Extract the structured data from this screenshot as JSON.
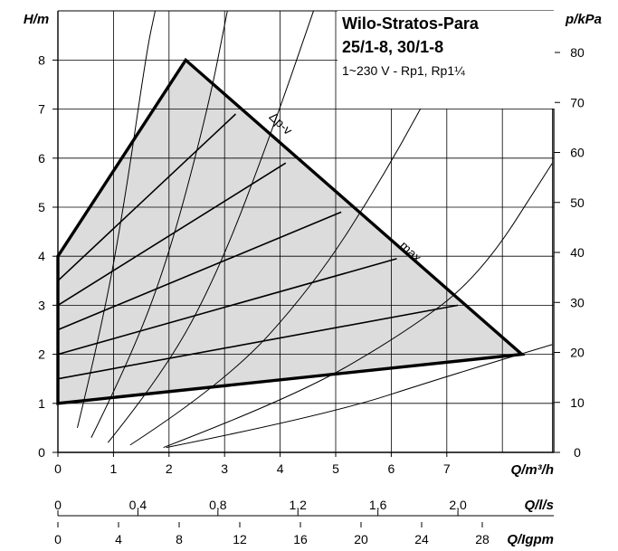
{
  "title": {
    "line1": "Wilo-Stratos-Para",
    "line2": "25/1-8, 30/1-8",
    "line3": "1~230 V - Rp1, Rp1¼"
  },
  "chart_data": {
    "type": "line",
    "ylabel": "H/m",
    "ylabel_right": "p/kPa",
    "xlabel": "Q/m³/h",
    "xlabel2": "Q/l/s",
    "xlabel3": "Q/Igpm",
    "xlim": [
      0,
      8.9
    ],
    "ylim": [
      0,
      8.6
    ],
    "y_ticks": [
      "0",
      "1",
      "2",
      "3",
      "4",
      "5",
      "6",
      "7",
      "8"
    ],
    "p_ticks": [
      "0",
      "10",
      "20",
      "30",
      "40",
      "50",
      "60",
      "70",
      "80"
    ],
    "x_ticks": [
      "0",
      "1",
      "2",
      "3",
      "4",
      "5",
      "6",
      "7"
    ],
    "ls_ticks": [
      "0",
      "0,4",
      "0,8",
      "1,2",
      "1,6",
      "2,0"
    ],
    "ls_values": [
      0,
      0.4,
      0.8,
      1.2,
      1.6,
      2.0
    ],
    "igpm_ticks": [
      "0",
      "4",
      "8",
      "12",
      "16",
      "20",
      "24",
      "28"
    ],
    "igpm_values": [
      0,
      4,
      8,
      12,
      16,
      20,
      24,
      28
    ],
    "grid": true,
    "annotations": {
      "dpv": "Δp-v",
      "max": "max."
    },
    "operating_range": [
      [
        0,
        4.0
      ],
      [
        2.3,
        8.0
      ],
      [
        8.35,
        2.0
      ],
      [
        0,
        1.0
      ]
    ],
    "speed_lines": [
      {
        "from": [
          0,
          1.0
        ],
        "to": [
          8.35,
          2.0
        ]
      },
      {
        "from": [
          0,
          1.5
        ],
        "to": [
          7.2,
          3.0
        ]
      },
      {
        "from": [
          0,
          2.0
        ],
        "to": [
          6.1,
          3.95
        ]
      },
      {
        "from": [
          0,
          2.5
        ],
        "to": [
          5.1,
          4.9
        ]
      },
      {
        "from": [
          0,
          3.0
        ],
        "to": [
          4.1,
          5.9
        ]
      },
      {
        "from": [
          0,
          3.5
        ],
        "to": [
          3.2,
          6.9
        ]
      },
      {
        "from": [
          0,
          4.0
        ],
        "to": [
          2.3,
          8.0
        ]
      }
    ],
    "system_curves": [
      {
        "points": [
          [
            0.35,
            0.5
          ],
          [
            0.8,
            2.6
          ],
          [
            1.2,
            5.1
          ],
          [
            1.6,
            8.2
          ],
          [
            1.75,
            9.0
          ]
        ]
      },
      {
        "points": [
          [
            0.6,
            0.3
          ],
          [
            1.3,
            1.9
          ],
          [
            2.0,
            4.0
          ],
          [
            2.7,
            7.0
          ],
          [
            3.05,
            9.0
          ]
        ]
      },
      {
        "points": [
          [
            0.9,
            0.2
          ],
          [
            1.9,
            1.6
          ],
          [
            2.9,
            3.7
          ],
          [
            3.9,
            6.7
          ],
          [
            4.6,
            9.0
          ]
        ]
      },
      {
        "points": [
          [
            1.3,
            0.15
          ],
          [
            3.0,
            1.4
          ],
          [
            4.6,
            3.4
          ],
          [
            5.9,
            5.7
          ],
          [
            7.0,
            8.0
          ]
        ]
      },
      {
        "points": [
          [
            1.9,
            0.1
          ],
          [
            4.2,
            1.1
          ],
          [
            6.2,
            2.4
          ],
          [
            7.6,
            3.6
          ],
          [
            8.9,
            5.9
          ]
        ]
      },
      {
        "points": [
          [
            1.95,
            0.1
          ],
          [
            4.8,
            0.75
          ],
          [
            7.0,
            1.55
          ],
          [
            8.9,
            2.2
          ]
        ]
      }
    ]
  }
}
